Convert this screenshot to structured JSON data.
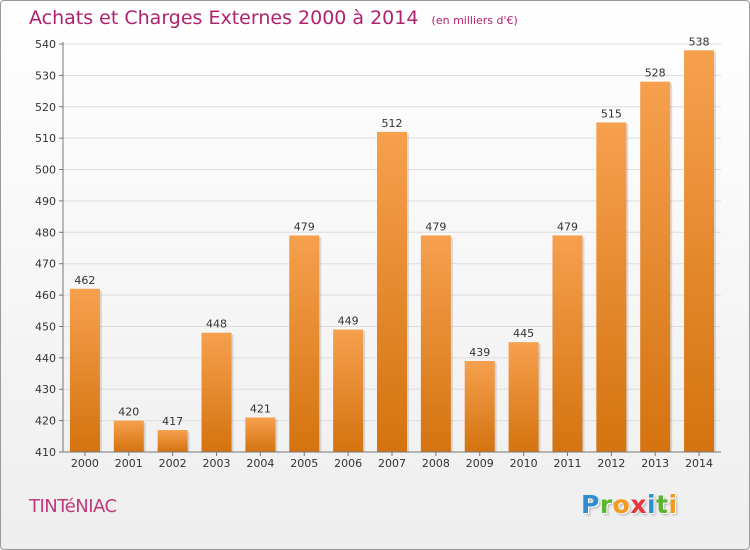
{
  "header": {
    "title": "Achats et Charges Externes 2000 à 2014",
    "unit": "(en milliers d'€)"
  },
  "footer": {
    "place": "TINTéNIAC",
    "logo_letters": [
      {
        "char": "P",
        "color": "#2d8ecf"
      },
      {
        "char": "r",
        "color": "#5cb531"
      },
      {
        "char": "o",
        "color": "#f29a1f"
      },
      {
        "char": "x",
        "color": "#e8343a"
      },
      {
        "char": "i",
        "color": "#2d8ecf"
      },
      {
        "char": "t",
        "color": "#5cb531"
      },
      {
        "char": "i",
        "color": "#f29a1f"
      }
    ]
  },
  "colors": {
    "bar_light": "#f6a04e",
    "bar_dark": "#d4730f",
    "grid": "#dddddd",
    "axis": "#777777"
  },
  "chart_data": {
    "type": "bar",
    "categories": [
      "2000",
      "2001",
      "2002",
      "2003",
      "2004",
      "2005",
      "2006",
      "2007",
      "2008",
      "2009",
      "2010",
      "2011",
      "2012",
      "2013",
      "2014"
    ],
    "values": [
      462,
      420,
      417,
      448,
      421,
      479,
      449,
      512,
      479,
      439,
      445,
      479,
      515,
      528,
      538
    ],
    "yticks": [
      410,
      420,
      430,
      440,
      450,
      460,
      470,
      480,
      490,
      500,
      510,
      520,
      530,
      540
    ],
    "ylim": [
      410,
      540
    ],
    "grid": true,
    "legend": "none"
  }
}
